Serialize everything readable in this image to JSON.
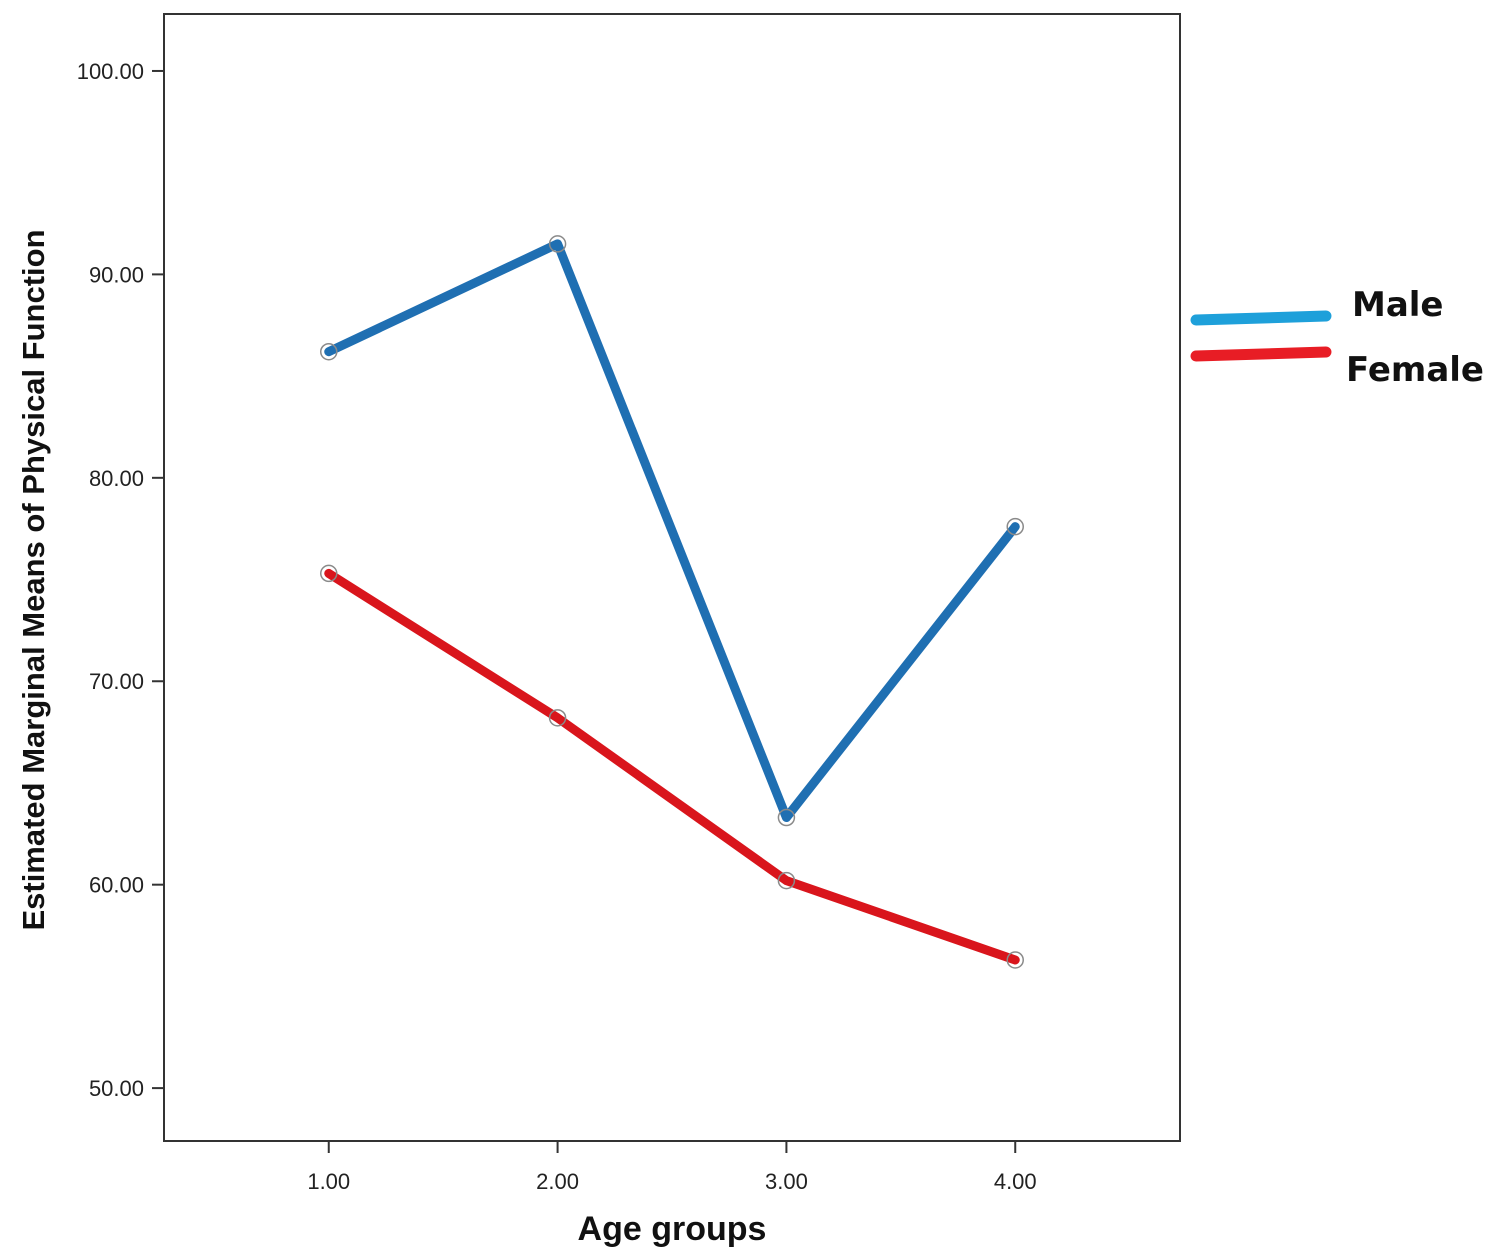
{
  "chart_data": {
    "type": "line",
    "xlabel": "Age groups",
    "ylabel": "Estimated Marginal Means of Physical Function",
    "x": [
      1,
      2,
      3,
      4
    ],
    "x_tick_labels": [
      "1.00",
      "2.00",
      "3.00",
      "4.00"
    ],
    "y_ticks": [
      50,
      60,
      70,
      80,
      90,
      100
    ],
    "y_tick_labels": [
      "50.00",
      "60.00",
      "70.00",
      "80.00",
      "90.00",
      "100.00"
    ],
    "xlim": [
      0.28,
      4.72
    ],
    "ylim": [
      47.4,
      102.8
    ],
    "grid": false,
    "legend_position": "right",
    "series": [
      {
        "name": "Male",
        "values": [
          86.2,
          91.5,
          63.3,
          77.6
        ],
        "color": "#1f6fb2",
        "legend_color": "#1ea0da"
      },
      {
        "name": "Female",
        "values": [
          75.3,
          68.2,
          60.2,
          56.3
        ],
        "color": "#d9151c",
        "legend_color": "#e81d25"
      }
    ]
  }
}
